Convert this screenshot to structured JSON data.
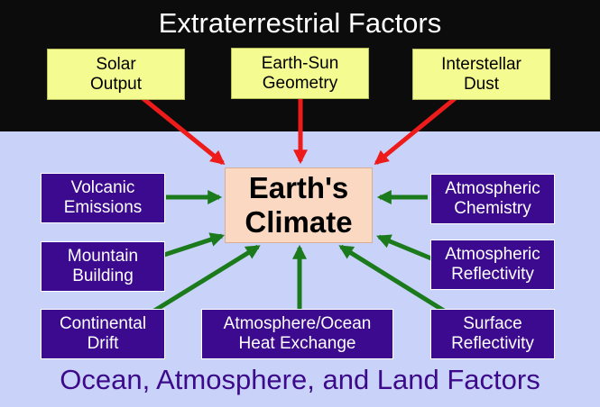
{
  "header": {
    "title": "Extraterrestrial Factors"
  },
  "footer": {
    "title": "Ocean, Atmosphere, and Land Factors"
  },
  "center": {
    "label": "Earth's\nClimate"
  },
  "extraterrestrial": {
    "solar_output": "Solar\nOutput",
    "earth_sun_geometry": "Earth-Sun\nGeometry",
    "interstellar_dust": "Interstellar\nDust"
  },
  "terrestrial": {
    "volcanic_emissions": "Volcanic\nEmissions",
    "mountain_building": "Mountain\nBuilding",
    "continental_drift": "Continental\nDrift",
    "heat_exchange": "Atmosphere/Ocean\nHeat Exchange",
    "atmospheric_chemistry": "Atmospheric\nChemistry",
    "atmospheric_reflectivity": "Atmospheric\nReflectivity",
    "surface_reflectivity": "Surface\nReflectivity"
  },
  "colors": {
    "top_band": "#0c0c0c",
    "background": "#c9d3f9",
    "yellow_box": "#f4fb90",
    "purple_box": "#3b0a8e",
    "center_box": "#fbd8c1",
    "red_arrow": "#ee1b1b",
    "green_arrow": "#1b7a1b"
  }
}
